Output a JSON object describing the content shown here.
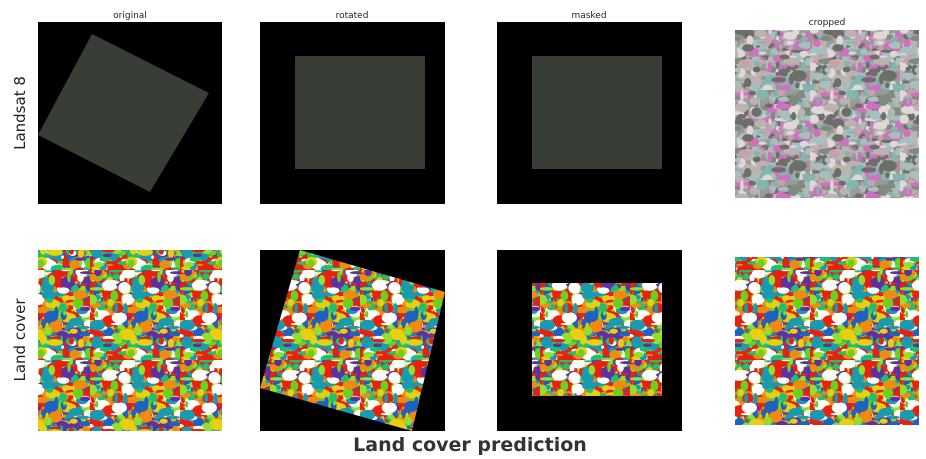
{
  "columns": [
    "original",
    "rotated",
    "masked",
    "cropped"
  ],
  "rows": [
    "Landsat 8",
    "Land cover"
  ],
  "caption": "Land cover prediction"
}
